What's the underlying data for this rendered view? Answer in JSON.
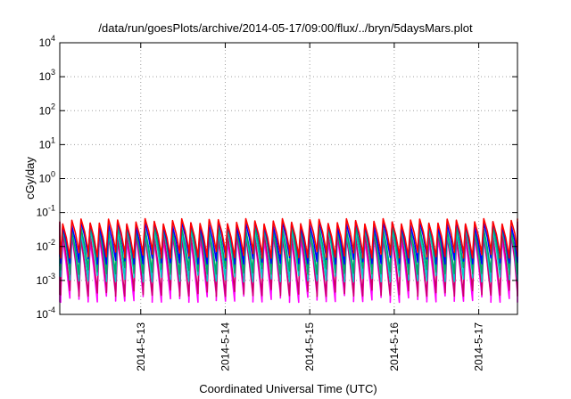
{
  "chart_data": {
    "type": "line",
    "title": "/data/run/goesPlots/archive/2014-05-17/09:00/flux/../bryn/5daysMars.plot",
    "xlabel": "Coordinated Universal Time (UTC)",
    "ylabel": "cGy/day",
    "y_scale": "log",
    "ylim": [
      0.0001,
      10000
    ],
    "xlim": [
      "2014-05-12T01:00",
      "2014-05-17T11:00"
    ],
    "grid": true,
    "legend": "none",
    "y_ticks": [
      {
        "base": "10",
        "exp": "-4",
        "value": 0.0001
      },
      {
        "base": "10",
        "exp": "-3",
        "value": 0.001
      },
      {
        "base": "10",
        "exp": "-2",
        "value": 0.01
      },
      {
        "base": "10",
        "exp": "-1",
        "value": 0.1
      },
      {
        "base": "10",
        "exp": "0",
        "value": 1
      },
      {
        "base": "10",
        "exp": "1",
        "value": 10
      },
      {
        "base": "10",
        "exp": "2",
        "value": 100
      },
      {
        "base": "10",
        "exp": "3",
        "value": 1000
      },
      {
        "base": "10",
        "exp": "4",
        "value": 10000
      }
    ],
    "x_ticks": [
      {
        "label": "2014-5-13",
        "value": "2014-05-13T00:00"
      },
      {
        "label": "2014-5-14",
        "value": "2014-05-14T00:00"
      },
      {
        "label": "2014-5-15",
        "value": "2014-05-15T00:00"
      },
      {
        "label": "2014-5-16",
        "value": "2014-05-16T00:00"
      },
      {
        "label": "2014-5-17",
        "value": "2014-05-17T00:00"
      }
    ],
    "cycle_hours": 2.6,
    "series": [
      {
        "color": "#ff00ff",
        "peak": 0.018,
        "trough": 0.0003
      },
      {
        "color": "#cc0066",
        "peak": 0.022,
        "trough": 0.00045
      },
      {
        "color": "#00cccc",
        "peak": 0.03,
        "trough": 0.0012
      },
      {
        "color": "#00aa66",
        "peak": 0.035,
        "trough": 0.002
      },
      {
        "color": "#0000ff",
        "peak": 0.045,
        "trough": 0.004
      },
      {
        "color": "#ff0000",
        "peak": 0.055,
        "trough": 0.006
      }
    ]
  }
}
